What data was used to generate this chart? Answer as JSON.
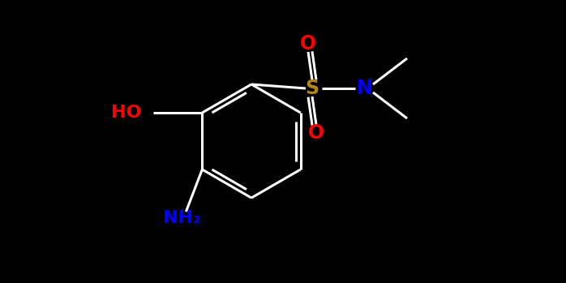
{
  "background_color": "#000000",
  "atom_colors": {
    "O": "#ff0000",
    "S": "#b8860b",
    "N": "#0000ff",
    "C": "#000000"
  },
  "figsize": [
    6.98,
    3.49
  ],
  "dpi": 100,
  "bond_lw": 2.2,
  "font_size_label": 16,
  "font_size_small": 14
}
